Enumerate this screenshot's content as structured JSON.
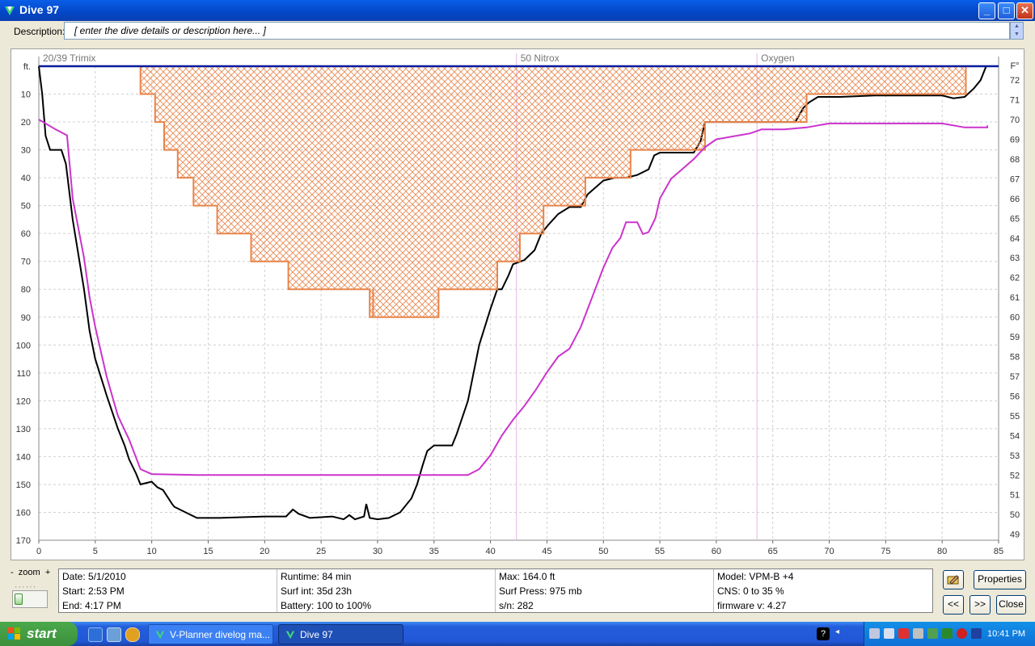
{
  "window": {
    "title": "Dive 97",
    "min_label": "_",
    "max_label": "□",
    "close_label": "✕"
  },
  "description": {
    "label": "Description:",
    "value": "[ enter the dive details or description here... ]"
  },
  "chart_data": {
    "type": "line",
    "x_ticks": [
      "0",
      "5",
      "10",
      "15",
      "20",
      "25",
      "30",
      "35",
      "40",
      "45",
      "50",
      "55",
      "60",
      "65",
      "70",
      "75",
      "80",
      "85"
    ],
    "y_left_unit": "ft.",
    "y_left_ticks": [
      "10",
      "20",
      "30",
      "40",
      "50",
      "60",
      "70",
      "80",
      "90",
      "100",
      "110",
      "120",
      "130",
      "140",
      "150",
      "160",
      "170"
    ],
    "y_right_unit": "F°",
    "y_right_ticks": [
      "72",
      "71",
      "70",
      "69",
      "68",
      "67",
      "66",
      "65",
      "64",
      "63",
      "62",
      "61",
      "60",
      "59",
      "58",
      "57",
      "56",
      "55",
      "54",
      "53",
      "52",
      "51",
      "50",
      "49"
    ],
    "xlim": [
      0,
      85
    ],
    "ylim_left": [
      0,
      170
    ],
    "ylim_right": [
      48.7,
      72.7
    ],
    "gas_labels": [
      {
        "label": "20/39 Trimix",
        "x": 0
      },
      {
        "label": "50 Nitrox",
        "x": 42.3
      },
      {
        "label": "Oxygen",
        "x": 63.6
      }
    ],
    "series": [
      {
        "kind": "depth",
        "axis": "left",
        "color": "#000000",
        "points": [
          [
            0,
            0
          ],
          [
            0.3,
            10
          ],
          [
            0.6,
            25
          ],
          [
            1,
            30
          ],
          [
            2,
            30
          ],
          [
            2.4,
            35
          ],
          [
            3,
            55
          ],
          [
            4,
            80
          ],
          [
            4.5,
            95
          ],
          [
            5,
            105
          ],
          [
            6,
            118
          ],
          [
            7,
            130
          ],
          [
            7.6,
            136
          ],
          [
            8,
            141
          ],
          [
            8.6,
            146
          ],
          [
            9,
            150
          ],
          [
            10,
            149
          ],
          [
            10.5,
            151
          ],
          [
            11,
            152
          ],
          [
            11.8,
            157
          ],
          [
            12,
            158
          ],
          [
            13,
            160
          ],
          [
            14,
            162
          ],
          [
            16,
            162
          ],
          [
            20,
            161.5
          ],
          [
            21.9,
            161.5
          ],
          [
            22.5,
            159
          ],
          [
            23,
            160.5
          ],
          [
            24,
            162
          ],
          [
            26,
            161.5
          ],
          [
            27,
            162.5
          ],
          [
            27.5,
            161
          ],
          [
            28,
            162.5
          ],
          [
            28.8,
            161.5
          ],
          [
            29,
            157
          ],
          [
            29.3,
            162
          ],
          [
            30,
            162.5
          ],
          [
            31,
            162
          ],
          [
            32,
            160
          ],
          [
            33,
            155
          ],
          [
            33.5,
            150
          ],
          [
            34,
            143
          ],
          [
            34.4,
            138
          ],
          [
            35,
            136
          ],
          [
            36,
            136
          ],
          [
            36.6,
            136
          ],
          [
            37,
            132
          ],
          [
            38,
            120
          ],
          [
            39,
            100
          ],
          [
            40,
            87
          ],
          [
            40.6,
            80
          ],
          [
            41,
            80
          ],
          [
            41.6,
            75
          ],
          [
            42,
            71
          ],
          [
            43,
            69.5
          ],
          [
            43.9,
            66
          ],
          [
            44.5,
            60
          ],
          [
            45.1,
            57
          ],
          [
            46,
            53
          ],
          [
            47,
            50.5
          ],
          [
            48,
            50.5
          ],
          [
            48.6,
            46
          ],
          [
            50,
            41
          ],
          [
            51,
            40
          ],
          [
            52,
            40
          ],
          [
            53,
            39
          ],
          [
            54,
            37
          ],
          [
            54.5,
            32
          ],
          [
            55,
            31
          ],
          [
            58,
            31
          ],
          [
            58.6,
            27
          ],
          [
            59,
            20
          ],
          [
            60,
            20
          ],
          [
            62,
            20
          ],
          [
            65,
            20
          ],
          [
            67,
            20
          ],
          [
            67.7,
            15
          ],
          [
            68.2,
            13
          ],
          [
            69,
            11
          ],
          [
            71,
            11
          ],
          [
            74,
            10.5
          ],
          [
            78,
            10.5
          ],
          [
            80,
            10.5
          ],
          [
            81,
            11.5
          ],
          [
            82,
            11
          ],
          [
            82.8,
            8
          ],
          [
            83.4,
            5
          ],
          [
            83.9,
            0
          ]
        ]
      },
      {
        "kind": "ceiling",
        "axis": "left",
        "color": "#e8844a",
        "points": [
          [
            9,
            0
          ],
          [
            9,
            10
          ],
          [
            10.3,
            10
          ],
          [
            10.3,
            20
          ],
          [
            11.1,
            20
          ],
          [
            11.1,
            30
          ],
          [
            12.3,
            30
          ],
          [
            12.3,
            40
          ],
          [
            13.7,
            40
          ],
          [
            13.7,
            50
          ],
          [
            15.8,
            50
          ],
          [
            15.8,
            60
          ],
          [
            18.8,
            60
          ],
          [
            18.8,
            70
          ],
          [
            22.1,
            70
          ],
          [
            22.1,
            80
          ],
          [
            29.3,
            80
          ],
          [
            29.3,
            90
          ],
          [
            29.6,
            90
          ],
          [
            29.6,
            80
          ],
          [
            29.6,
            90
          ],
          [
            35.4,
            90
          ],
          [
            35.4,
            80
          ],
          [
            40.6,
            80
          ],
          [
            40.6,
            70
          ],
          [
            42.6,
            70
          ],
          [
            42.6,
            60
          ],
          [
            44.7,
            60
          ],
          [
            44.7,
            50
          ],
          [
            48.4,
            50
          ],
          [
            48.4,
            40
          ],
          [
            52.4,
            40
          ],
          [
            52.4,
            30
          ],
          [
            59,
            30
          ],
          [
            59,
            20
          ],
          [
            68,
            20
          ],
          [
            68,
            10
          ],
          [
            82.1,
            10
          ],
          [
            82.1,
            0
          ]
        ]
      },
      {
        "kind": "temperature",
        "axis": "right",
        "color": "#cc33cc",
        "points": [
          [
            0,
            70
          ],
          [
            1.5,
            69.5
          ],
          [
            2.5,
            69.2
          ],
          [
            3,
            66
          ],
          [
            4,
            63
          ],
          [
            4.5,
            61
          ],
          [
            5,
            59.5
          ],
          [
            6,
            57
          ],
          [
            7,
            55
          ],
          [
            8,
            53.8
          ],
          [
            9,
            52.3
          ],
          [
            10,
            52.05
          ],
          [
            14,
            52
          ],
          [
            25,
            52
          ],
          [
            33,
            52
          ],
          [
            37,
            52
          ],
          [
            38,
            52
          ],
          [
            39,
            52.3
          ],
          [
            40,
            53
          ],
          [
            41,
            54
          ],
          [
            42,
            54.8
          ],
          [
            43,
            55.5
          ],
          [
            44,
            56.3
          ],
          [
            45,
            57.2
          ],
          [
            46,
            58
          ],
          [
            47,
            58.4
          ],
          [
            48,
            59.5
          ],
          [
            49,
            61
          ],
          [
            50,
            62.5
          ],
          [
            50.8,
            63.5
          ],
          [
            51.5,
            64
          ],
          [
            52,
            64.8
          ],
          [
            53,
            64.8
          ],
          [
            53.5,
            64.2
          ],
          [
            54,
            64.3
          ],
          [
            54.6,
            65
          ],
          [
            55,
            66
          ],
          [
            56,
            67
          ],
          [
            57,
            67.5
          ],
          [
            58,
            68
          ],
          [
            59,
            68.6
          ],
          [
            60,
            69
          ],
          [
            62,
            69.2
          ],
          [
            63,
            69.3
          ],
          [
            64,
            69.5
          ],
          [
            66,
            69.5
          ],
          [
            68,
            69.6
          ],
          [
            70,
            69.8
          ],
          [
            75,
            69.8
          ],
          [
            80,
            69.8
          ],
          [
            82,
            69.6
          ],
          [
            84,
            69.6
          ],
          [
            84,
            69.7
          ]
        ]
      },
      {
        "kind": "surface",
        "axis": "left",
        "color": "#0a1a9e",
        "points": [
          [
            0,
            0
          ],
          [
            85,
            0
          ]
        ]
      }
    ]
  },
  "info": {
    "date": "Date: 5/1/2010",
    "start": "Start: 2:53 PM",
    "end": "End: 4:17 PM",
    "runtime": "Runtime: 84 min",
    "surf_int": "Surf int: 35d 23h",
    "battery": "Battery: 100 to 100%",
    "max": "Max: 164.0 ft",
    "surf_press": "Surf Press: 975 mb",
    "sn": "s/n: 282",
    "model": "Model: VPM-B +4",
    "cns": "CNS: 0 to 35 %",
    "firmware": "firmware v: 4.27"
  },
  "zoom": {
    "minus": "-",
    "label": "zoom",
    "plus": "+"
  },
  "buttons": {
    "properties": "Properties",
    "prev": "<<",
    "next": ">>",
    "close": "Close"
  },
  "taskbar": {
    "start": "start",
    "tasks": [
      {
        "label": "V-Planner divelog ma..."
      },
      {
        "label": "Dive 97"
      }
    ],
    "clock": "10:41 PM"
  }
}
